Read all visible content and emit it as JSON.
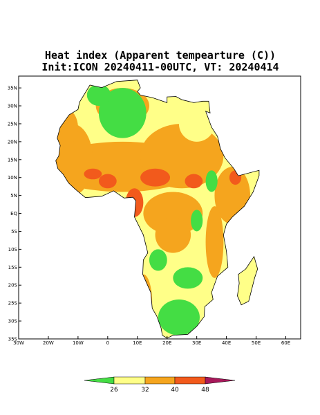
{
  "map": {
    "title": "Heat index (Apparent tempearture (C))",
    "subtitle": "Init:ICON 20240411-00UTC, VT: 20240414",
    "xlim": [
      -30,
      65
    ],
    "ylim": [
      -35,
      38.3
    ],
    "xticks": [
      {
        "value": -30,
        "label": "30W"
      },
      {
        "value": -20,
        "label": "20W"
      },
      {
        "value": -10,
        "label": "10W"
      },
      0,
      {
        "value": 10,
        "label": "10E"
      },
      {
        "value": 20,
        "label": "20E"
      },
      {
        "value": 30,
        "label": "30E"
      },
      {
        "value": 40,
        "label": "40E"
      },
      {
        "value": 50,
        "label": "50E"
      },
      {
        "value": 60,
        "label": "60E"
      }
    ],
    "yticks": [
      {
        "value": -35,
        "label": "35S"
      },
      {
        "value": -30,
        "label": "30S"
      },
      {
        "value": -25,
        "label": "25S"
      },
      {
        "value": -20,
        "label": "20S"
      },
      {
        "value": -15,
        "label": "15S"
      },
      {
        "value": -10,
        "label": "10S"
      },
      {
        "value": -5,
        "label": "5S"
      },
      {
        "value": 0,
        "label": "EQ"
      },
      {
        "value": 5,
        "label": "5N"
      },
      {
        "value": 10,
        "label": "10N"
      },
      {
        "value": 15,
        "label": "15N"
      },
      {
        "value": 20,
        "label": "20N"
      },
      {
        "value": 25,
        "label": "25N"
      },
      {
        "value": 30,
        "label": "30N"
      },
      {
        "value": 35,
        "label": "35N"
      }
    ],
    "colorbar": {
      "levels": [
        26,
        32,
        40,
        48
      ],
      "colors": [
        "#44dd44",
        "#ffff88",
        "#f5a51e",
        "#f25a1c",
        "#a8185a"
      ]
    }
  }
}
